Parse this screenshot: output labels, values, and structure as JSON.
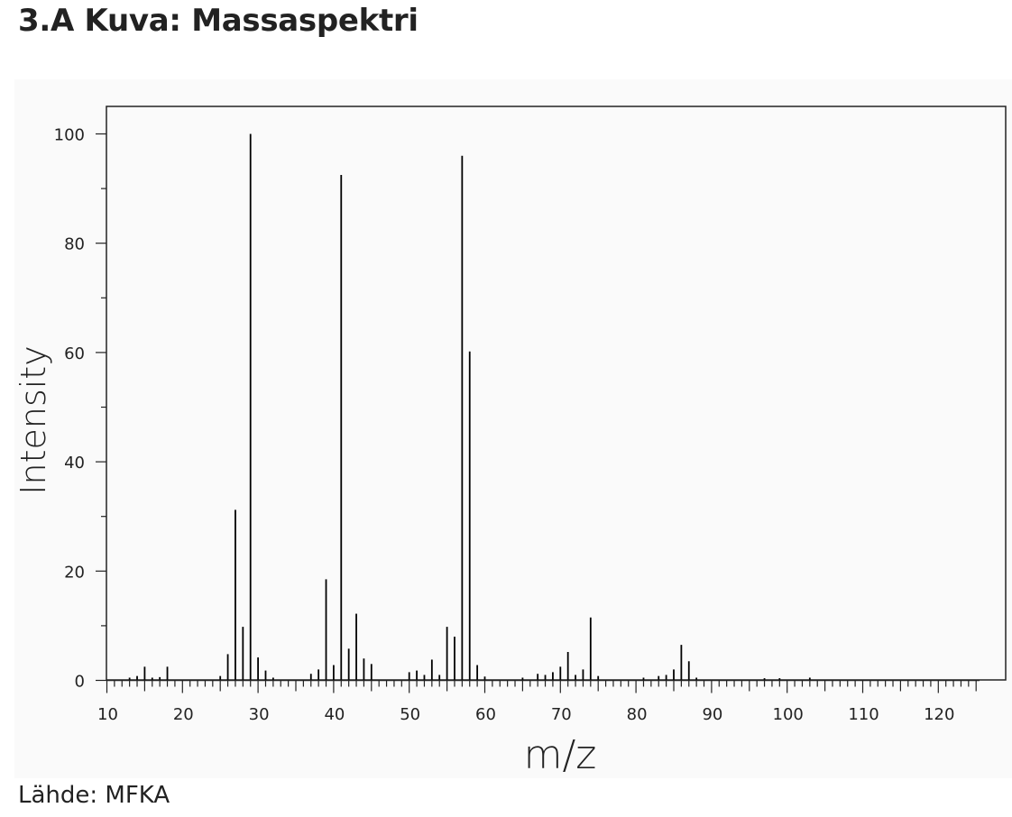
{
  "page": {
    "title": "3.A Kuva: Massaspektri",
    "source": "Lähde: MFKA"
  },
  "chart_data": {
    "type": "bar",
    "title": "",
    "xlabel": "m/z",
    "ylabel": "Intensity",
    "xlim": [
      10,
      128
    ],
    "ylim": [
      0,
      105
    ],
    "x_ticks": [
      10,
      20,
      30,
      40,
      50,
      60,
      70,
      80,
      90,
      100,
      110,
      120
    ],
    "y_ticks": [
      0,
      20,
      40,
      60,
      80,
      100
    ],
    "grid": false,
    "series": [
      {
        "x": [
          13,
          14,
          15,
          16,
          17,
          18,
          25,
          26,
          27,
          28,
          29,
          30,
          31,
          32,
          37,
          38,
          39,
          40,
          41,
          42,
          43,
          44,
          45,
          50,
          51,
          52,
          53,
          54,
          55,
          56,
          57,
          58,
          59,
          60,
          65,
          67,
          68,
          69,
          70,
          71,
          72,
          73,
          74,
          75,
          81,
          83,
          84,
          85,
          86,
          87,
          88,
          97,
          99,
          103
        ],
        "values": [
          0.5,
          0.8,
          2.5,
          0.5,
          0.6,
          2.5,
          0.8,
          4.8,
          31.2,
          9.8,
          100,
          4.2,
          1.8,
          0.5,
          1.2,
          2,
          18.5,
          2.8,
          92.5,
          5.8,
          12.2,
          4,
          3,
          1.5,
          1.8,
          1,
          3.8,
          1,
          9.8,
          8,
          96,
          60.2,
          2.8,
          0.7,
          0.5,
          1.2,
          1,
          1.5,
          2.5,
          5.2,
          1,
          2,
          11.5,
          0.8,
          0.5,
          0.8,
          1,
          2,
          6.5,
          3.5,
          0.5,
          0.4,
          0.4,
          0.5
        ]
      }
    ],
    "colors": {
      "bars": "#000000",
      "axes": "#222222"
    }
  }
}
